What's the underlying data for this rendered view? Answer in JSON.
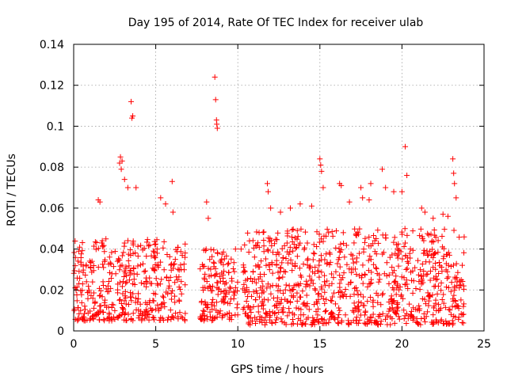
{
  "chart_data": {
    "type": "scatter",
    "title": "Day 195 of 2014, Rate Of TEC Index for receiver ulab",
    "xlabel": "GPS time / hours",
    "ylabel": "ROTI / TECUs",
    "xlim": [
      0,
      25
    ],
    "ylim": [
      0,
      0.14
    ],
    "x_ticks": [
      0,
      5,
      10,
      15,
      20,
      25
    ],
    "x_tick_labels": [
      "0",
      "5",
      "10",
      "15",
      "20",
      "25"
    ],
    "y_ticks": [
      0,
      0.02,
      0.04,
      0.06,
      0.08,
      0.1,
      0.12,
      0.14
    ],
    "y_tick_labels": [
      "0",
      "0.02",
      "0.04",
      "0.06",
      "0.08",
      "0.1",
      "0.12",
      "0.14"
    ],
    "grid": true,
    "marker": "+",
    "marker_color": "#ff0000",
    "density_segments": [
      {
        "x_start": 0.0,
        "x_end": 6.8,
        "y_min": 0.005,
        "y_max": 0.045,
        "count": 420
      },
      {
        "x_start": 7.7,
        "x_end": 10.0,
        "y_min": 0.005,
        "y_max": 0.04,
        "count": 150
      },
      {
        "x_start": 10.3,
        "x_end": 23.8,
        "y_min": 0.003,
        "y_max": 0.05,
        "count": 900
      }
    ],
    "series": [
      {
        "name": "ROTI",
        "x": [
          2.8,
          2.85,
          2.9,
          2.95,
          3.5,
          3.55,
          3.6,
          3.1,
          3.3,
          1.5,
          1.6,
          3.8,
          5.3,
          6.0,
          5.6,
          6.05,
          8.6,
          8.65,
          8.7,
          8.72,
          8.75,
          8.1,
          8.2,
          10.2,
          11.8,
          11.85,
          15.0,
          15.05,
          15.1,
          15.2,
          16.2,
          16.3,
          17.5,
          17.6,
          18.0,
          18.1,
          18.8,
          19.0,
          19.5,
          20.2,
          20.3,
          20.0,
          21.2,
          21.4,
          23.1,
          23.15,
          23.2,
          23.3,
          14.5,
          13.2,
          12.6,
          22.5,
          22.8,
          12.0,
          13.8,
          16.8,
          21.9
        ],
        "y": [
          0.082,
          0.085,
          0.079,
          0.083,
          0.112,
          0.104,
          0.105,
          0.074,
          0.07,
          0.064,
          0.063,
          0.07,
          0.065,
          0.073,
          0.062,
          0.058,
          0.124,
          0.113,
          0.103,
          0.101,
          0.099,
          0.063,
          0.055,
          0.04,
          0.072,
          0.068,
          0.084,
          0.081,
          0.078,
          0.07,
          0.072,
          0.071,
          0.07,
          0.065,
          0.064,
          0.072,
          0.079,
          0.07,
          0.068,
          0.09,
          0.076,
          0.068,
          0.06,
          0.058,
          0.084,
          0.077,
          0.072,
          0.065,
          0.061,
          0.06,
          0.058,
          0.057,
          0.056,
          0.06,
          0.062,
          0.063,
          0.055
        ]
      }
    ]
  }
}
